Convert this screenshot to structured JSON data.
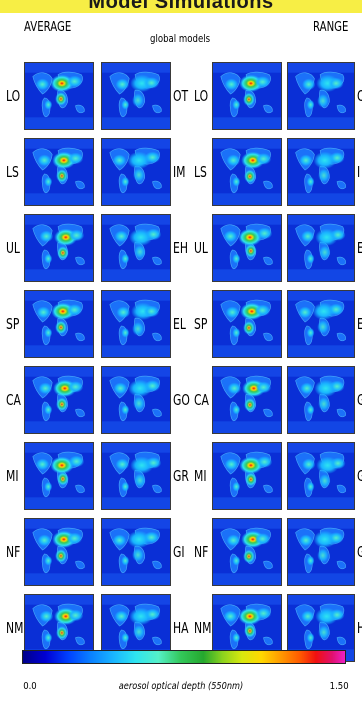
{
  "title": "Model Simulations",
  "headers": {
    "average": "AVERAGE",
    "global_models": "global models",
    "range": "RANGE"
  },
  "rows": [
    {
      "left": "LO",
      "mid": "OT",
      "right": "LO",
      "edge": "O"
    },
    {
      "left": "LS",
      "mid": "IM",
      "right": "LS",
      "edge": "I"
    },
    {
      "left": "UL",
      "mid": "EH",
      "right": "UL",
      "edge": "E"
    },
    {
      "left": "SP",
      "mid": "EL",
      "right": "SP",
      "edge": "E"
    },
    {
      "left": "CA",
      "mid": "GO",
      "right": "CA",
      "edge": "G"
    },
    {
      "left": "MI",
      "mid": "GR",
      "right": "MI",
      "edge": "G"
    },
    {
      "left": "NF",
      "mid": "GI",
      "right": "NF",
      "edge": "G"
    },
    {
      "left": "NM",
      "mid": "HA",
      "right": "NM",
      "edge": "H"
    }
  ],
  "colorbar": {
    "min": "0.0",
    "max": "1.50",
    "label": "aerosol optical depth (550nm)",
    "colors": [
      "#00008a",
      "#0000d4",
      "#0040ff",
      "#0a80ff",
      "#19b4ff",
      "#2ee4f0",
      "#55f0c8",
      "#33c85a",
      "#25a82e",
      "#8cd21e",
      "#d8e80e",
      "#ffd800",
      "#ff9a00",
      "#ff5a00",
      "#f01010",
      "#e0106e",
      "#ee20c8"
    ]
  }
}
